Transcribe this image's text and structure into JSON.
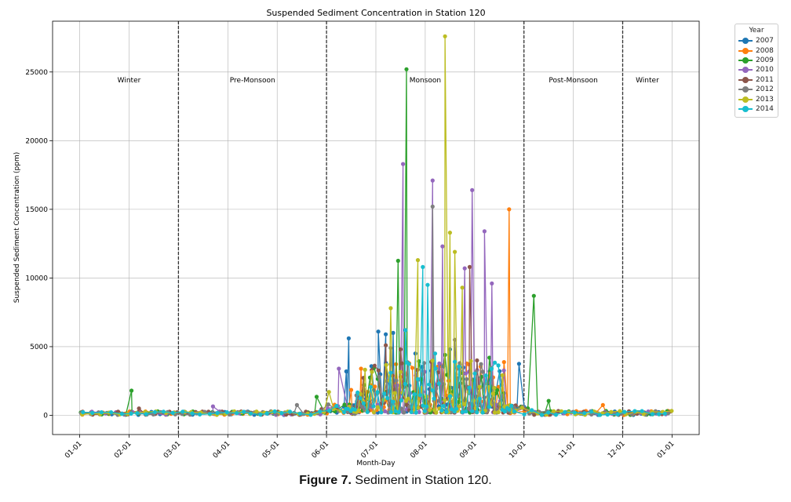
{
  "chart_data": {
    "type": "line",
    "title": "Suspended Sediment Concentration in Station 120",
    "xlabel": "Month-Day",
    "ylabel": "Suspended Sediment Concentration (ppm)",
    "x_ticks": [
      "01-01",
      "02-01",
      "03-01",
      "04-01",
      "05-01",
      "06-01",
      "07-01",
      "08-01",
      "09-01",
      "10-01",
      "11-01",
      "12-01",
      "01-01"
    ],
    "y_ticks": [
      0,
      5000,
      10000,
      15000,
      20000,
      25000
    ],
    "ylim": [
      -1400,
      28700
    ],
    "grid": true,
    "legend": {
      "title": "Year",
      "placement": "outside-right"
    },
    "seasons": [
      {
        "label": "Winter",
        "start_month": 1,
        "end_month": 3
      },
      {
        "label": "Pre-Monsoon",
        "start_month": 3,
        "end_month": 6
      },
      {
        "label": "Monsoon",
        "start_month": 6,
        "end_month": 10
      },
      {
        "label": "Post-Monsoon",
        "start_month": 10,
        "end_month": 12
      },
      {
        "label": "Winter",
        "start_month": 12,
        "end_month": 13
      }
    ],
    "season_boundaries": [
      3,
      6,
      10,
      12
    ],
    "series": [
      {
        "name": "2007",
        "color": "#1f77b4",
        "peaks": [
          {
            "x": 6.45,
            "y": 5600
          },
          {
            "x": 6.4,
            "y": 3200
          },
          {
            "x": 7.05,
            "y": 6100
          },
          {
            "x": 7.2,
            "y": 5900
          },
          {
            "x": 7.35,
            "y": 6000
          },
          {
            "x": 7.8,
            "y": 4500
          },
          {
            "x": 8.5,
            "y": 4800
          },
          {
            "x": 9.9,
            "y": 3750
          }
        ]
      },
      {
        "name": "2008",
        "color": "#ff7f0e",
        "peaks": [
          {
            "x": 6.5,
            "y": 1850
          },
          {
            "x": 6.7,
            "y": 3400
          },
          {
            "x": 6.9,
            "y": 2200
          },
          {
            "x": 7.5,
            "y": 2800
          },
          {
            "x": 8.3,
            "y": 3600
          },
          {
            "x": 9.7,
            "y": 15000
          },
          {
            "x": 11.6,
            "y": 750
          }
        ]
      },
      {
        "name": "2009",
        "color": "#2ca02c",
        "peaks": [
          {
            "x": 2.05,
            "y": 1800
          },
          {
            "x": 5.8,
            "y": 1350
          },
          {
            "x": 7.45,
            "y": 11250
          },
          {
            "x": 7.62,
            "y": 25200
          },
          {
            "x": 8.4,
            "y": 4400
          },
          {
            "x": 9.3,
            "y": 4200
          },
          {
            "x": 10.2,
            "y": 8700
          },
          {
            "x": 10.5,
            "y": 1050
          }
        ]
      },
      {
        "name": "2010",
        "color": "#9467bd",
        "peaks": [
          {
            "x": 3.7,
            "y": 650
          },
          {
            "x": 6.25,
            "y": 3400
          },
          {
            "x": 7.55,
            "y": 18300
          },
          {
            "x": 8.15,
            "y": 17100
          },
          {
            "x": 8.35,
            "y": 12300
          },
          {
            "x": 8.8,
            "y": 10700
          },
          {
            "x": 8.95,
            "y": 16400
          },
          {
            "x": 9.2,
            "y": 13400
          },
          {
            "x": 9.35,
            "y": 9600
          }
        ]
      },
      {
        "name": "2011",
        "color": "#8c564b",
        "peaks": [
          {
            "x": 2.2,
            "y": 500
          },
          {
            "x": 5.9,
            "y": 450
          },
          {
            "x": 7.2,
            "y": 5100
          },
          {
            "x": 7.5,
            "y": 4800
          },
          {
            "x": 8.9,
            "y": 10800
          },
          {
            "x": 9.05,
            "y": 4000
          }
        ]
      },
      {
        "name": "2012",
        "color": "#7f7f7f",
        "peaks": [
          {
            "x": 5.4,
            "y": 750
          },
          {
            "x": 6.85,
            "y": 800
          },
          {
            "x": 7.3,
            "y": 4900
          },
          {
            "x": 8.15,
            "y": 15200
          },
          {
            "x": 8.6,
            "y": 5500
          },
          {
            "x": 8.7,
            "y": 3800
          }
        ]
      },
      {
        "name": "2013",
        "color": "#bcbd22",
        "peaks": [
          {
            "x": 6.05,
            "y": 1700
          },
          {
            "x": 7.3,
            "y": 7800
          },
          {
            "x": 7.85,
            "y": 11300
          },
          {
            "x": 8.4,
            "y": 27600
          },
          {
            "x": 8.5,
            "y": 13300
          },
          {
            "x": 8.6,
            "y": 11900
          },
          {
            "x": 8.75,
            "y": 9300
          },
          {
            "x": 9.4,
            "y": 2000
          }
        ]
      },
      {
        "name": "2014",
        "color": "#17becf",
        "peaks": [
          {
            "x": 7.3,
            "y": 3100
          },
          {
            "x": 7.6,
            "y": 6200
          },
          {
            "x": 7.95,
            "y": 10800
          },
          {
            "x": 8.05,
            "y": 9500
          },
          {
            "x": 8.2,
            "y": 4500
          },
          {
            "x": 8.6,
            "y": 3900
          }
        ]
      }
    ]
  },
  "caption": {
    "label": "Figure 7.",
    "text": " Sediment in Station 120."
  }
}
